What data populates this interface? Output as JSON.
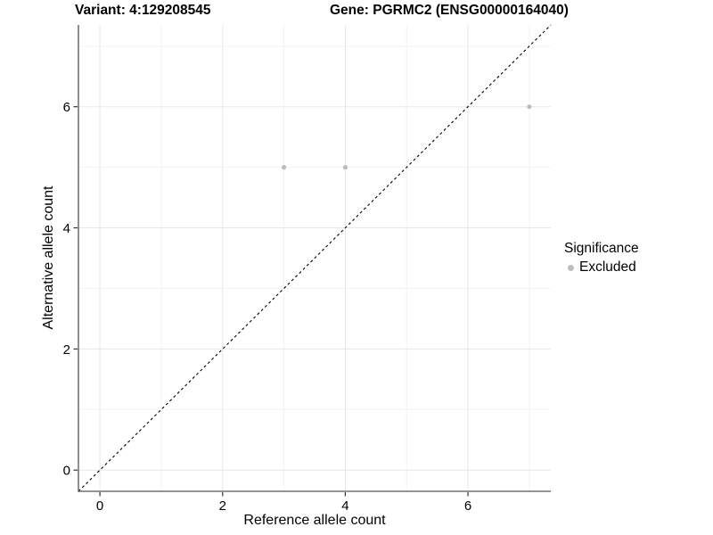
{
  "header": {
    "variant_title": "Variant: 4:129208545",
    "gene_title": "Gene: PGRMC2 (ENSG00000164040)"
  },
  "legend": {
    "title": "Significance",
    "items": [
      {
        "label": "Excluded",
        "color": "#bdbdbd"
      }
    ]
  },
  "chart_data": {
    "type": "scatter",
    "title": "Variant: 4:129208545",
    "subtitle": "Gene: PGRMC2 (ENSG00000164040)",
    "xlabel": "Reference allele count",
    "ylabel": "Alternative allele count",
    "xlim": [
      -0.35,
      7.35
    ],
    "ylim": [
      -0.35,
      7.35
    ],
    "x_ticks": [
      0,
      2,
      4,
      6
    ],
    "y_ticks": [
      0,
      2,
      4,
      6
    ],
    "minor_gridlines_x": [
      1,
      3,
      5,
      7
    ],
    "minor_gridlines_y": [
      1,
      3,
      5,
      7
    ],
    "grid": true,
    "legend_position": "right",
    "series": [
      {
        "name": "Excluded",
        "color": "#bdbdbd",
        "marker": "circle",
        "points": [
          {
            "x": 3,
            "y": 5
          },
          {
            "x": 4,
            "y": 5
          },
          {
            "x": 7,
            "y": 6
          }
        ]
      }
    ],
    "reference_line": {
      "type": "identity",
      "from": -0.35,
      "to": 7.35,
      "style": "dashed",
      "color": "#000000"
    }
  },
  "colors": {
    "background": "#ffffff",
    "grid_major": "#e7e7e7",
    "grid_minor": "#f3f3f3",
    "axis_line": "#555555",
    "tick": "#333333",
    "text": "#000000",
    "point": "#bdbdbd"
  }
}
